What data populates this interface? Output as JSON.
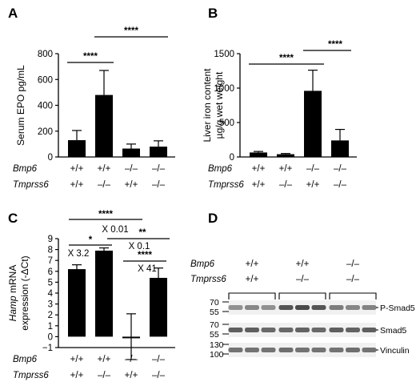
{
  "panels": [
    {
      "id": "A",
      "label": "A"
    },
    {
      "id": "B",
      "label": "B"
    },
    {
      "id": "C",
      "label": "C"
    },
    {
      "id": "D",
      "label": "D"
    }
  ],
  "genotype_labels": {
    "bmp6": "Bmp6",
    "tmprss6": "Tmprss6"
  },
  "chart_data": [
    {
      "panel": "A",
      "type": "bar",
      "ylabel": "Serum EPO pg/mL",
      "ylim": [
        0,
        800
      ],
      "yticks": [
        0,
        200,
        400,
        600,
        800
      ],
      "categories": [
        {
          "bmp6": "+/+",
          "tmprss6": "+/+"
        },
        {
          "bmp6": "+/+",
          "tmprss6": "–/–"
        },
        {
          "bmp6": "–/–",
          "tmprss6": "+/+"
        },
        {
          "bmp6": "–/–",
          "tmprss6": "–/–"
        }
      ],
      "values": [
        130,
        480,
        65,
        80
      ],
      "error_upper": [
        75,
        190,
        35,
        45
      ],
      "significance": [
        {
          "from": 0,
          "to": 1,
          "label": "****"
        },
        {
          "from": 1,
          "to": 3,
          "label": "****"
        }
      ]
    },
    {
      "panel": "B",
      "type": "bar",
      "ylabel": "Liver iron content µg/g wet weight",
      "ylabel_lines": [
        "Liver iron content",
        "µg/g wet weight"
      ],
      "ylim": [
        0,
        1500
      ],
      "yticks": [
        0,
        500,
        1000,
        1500
      ],
      "categories": [
        {
          "bmp6": "+/+",
          "tmprss6": "+/+"
        },
        {
          "bmp6": "+/+",
          "tmprss6": "–/–"
        },
        {
          "bmp6": "–/–",
          "tmprss6": "+/+"
        },
        {
          "bmp6": "–/–",
          "tmprss6": "–/–"
        }
      ],
      "values": [
        65,
        40,
        960,
        240
      ],
      "error_upper": [
        15,
        10,
        300,
        160
      ],
      "significance": [
        {
          "from": 0,
          "to": 2,
          "label": "****"
        },
        {
          "from": 2,
          "to": 3,
          "label": "****"
        }
      ]
    },
    {
      "panel": "C",
      "type": "bar",
      "ylabel": "Hamp mRNA expression (-ΔCt)",
      "ylabel_lines": [
        "Hamp mRNA",
        "expression (-ΔCt)"
      ],
      "ylim": [
        -1,
        9
      ],
      "yticks": [
        -1,
        0,
        1,
        2,
        3,
        4,
        5,
        6,
        7,
        8,
        9
      ],
      "categories": [
        {
          "bmp6": "+/+",
          "tmprss6": "+/+"
        },
        {
          "bmp6": "+/+",
          "tmprss6": "–/–"
        },
        {
          "bmp6": "–/–",
          "tmprss6": "+/+"
        },
        {
          "bmp6": "–/–",
          "tmprss6": "–/–"
        }
      ],
      "values": [
        6.2,
        7.9,
        0.0,
        5.4
      ],
      "error_upper": [
        0.4,
        0.25,
        2.1,
        0.9
      ],
      "error_lower": [
        0.4,
        0.25,
        2.1,
        0.9
      ],
      "significance": [
        {
          "from": 0,
          "to": 2,
          "label": "****",
          "fold": ""
        },
        {
          "from": 0,
          "to": 1,
          "label": "*",
          "fold": "X 3.2"
        },
        {
          "from": 1,
          "to": 3,
          "label": "**",
          "fold": "X 0.01"
        },
        {
          "from": 2,
          "to": 3,
          "label": "****",
          "fold": "X 41"
        }
      ],
      "extra_fold": "X 0.1"
    },
    {
      "panel": "D",
      "type": "western_blot",
      "groups": [
        {
          "bmp6": "+/+",
          "tmprss6": "+/+"
        },
        {
          "bmp6": "+/+",
          "tmprss6": "–/–"
        },
        {
          "bmp6": "–/–",
          "tmprss6": "–/–"
        }
      ],
      "lanes_per_group": 3,
      "blots": [
        {
          "name": "P-Smad5",
          "markers": [
            "70",
            "55"
          ],
          "intensity": [
            0.55,
            0.6,
            0.55,
            0.85,
            0.9,
            0.85,
            0.65,
            0.6,
            0.62
          ]
        },
        {
          "name": "Smad5",
          "markers": [
            "70",
            "55"
          ],
          "intensity": [
            0.8,
            0.8,
            0.75,
            0.75,
            0.78,
            0.75,
            0.8,
            0.78,
            0.8
          ]
        },
        {
          "name": "Vinculin",
          "markers": [
            "130",
            "100"
          ],
          "intensity": [
            0.7,
            0.7,
            0.7,
            0.72,
            0.7,
            0.7,
            0.7,
            0.72,
            0.7
          ]
        }
      ]
    }
  ]
}
